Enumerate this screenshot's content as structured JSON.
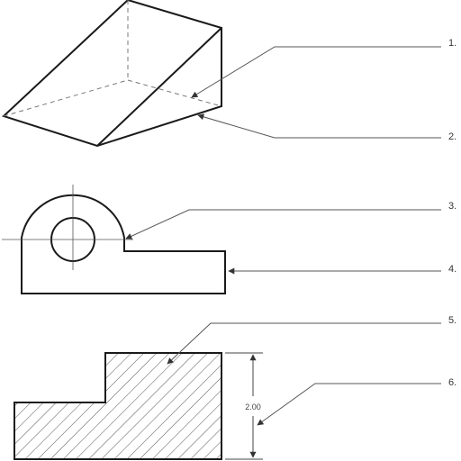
{
  "callouts": [
    "1.",
    "2.",
    "3.",
    "4.",
    "5.",
    "6."
  ],
  "dimension_value": "2.00",
  "colors": {
    "line": "#1a1a1a",
    "leader": "#555555",
    "hatch": "#555555"
  }
}
